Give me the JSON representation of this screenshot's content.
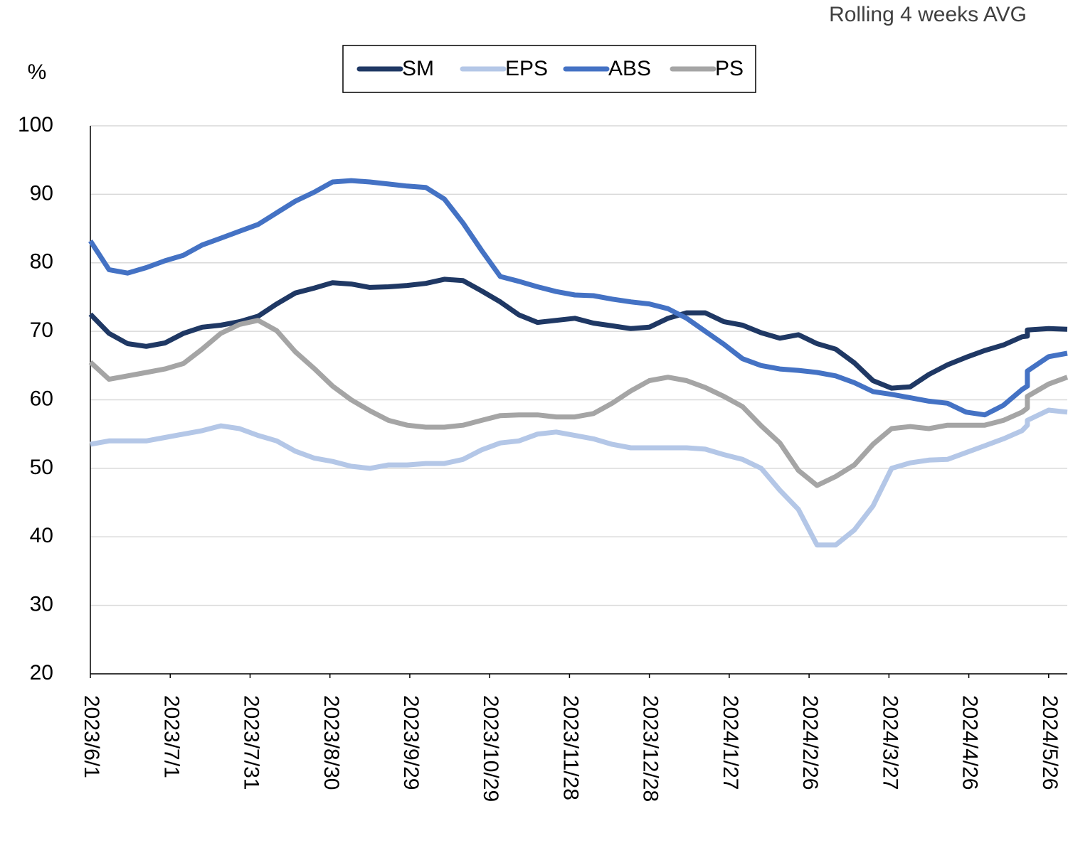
{
  "chart_data": {
    "type": "line",
    "annotation": "Rolling 4 weeks AVG",
    "ylabel": "%",
    "x": [
      "2023/6/1",
      "2023/6/8",
      "2023/6/15",
      "2023/6/22",
      "2023/6/29",
      "2023/7/6",
      "2023/7/13",
      "2023/7/20",
      "2023/7/27",
      "2023/8/3",
      "2023/8/10",
      "2023/8/17",
      "2023/8/24",
      "2023/8/31",
      "2023/9/7",
      "2023/9/14",
      "2023/9/21",
      "2023/9/28",
      "2023/10/5",
      "2023/10/12",
      "2023/10/19",
      "2023/10/26",
      "2023/11/2",
      "2023/11/9",
      "2023/11/16",
      "2023/11/23",
      "2023/11/30",
      "2023/12/7",
      "2023/12/14",
      "2023/12/21",
      "2023/12/28",
      "2024/1/4",
      "2024/1/11",
      "2024/1/18",
      "2024/1/25",
      "2024/2/1",
      "2024/2/8",
      "2024/2/15",
      "2024/2/22",
      "2024/2/29",
      "2024/3/7",
      "2024/3/14",
      "2024/3/21",
      "2024/3/28",
      "2024/4/4",
      "2024/4/11",
      "2024/4/18",
      "2024/4/25",
      "2024/5/2",
      "2024/5/9",
      "2024/5/16",
      "2024/5/18",
      "2024/5/18",
      "2024/5/26",
      "2024/6/2"
    ],
    "series": [
      {
        "name": "SM",
        "color": "#1f3864",
        "values": [
          72.5,
          69.7,
          68.2,
          67.8,
          68.3,
          69.7,
          70.6,
          70.9,
          71.4,
          72.2,
          74.0,
          75.6,
          76.3,
          77.1,
          76.9,
          76.4,
          76.5,
          76.7,
          77.0,
          77.6,
          77.4,
          75.9,
          74.3,
          72.4,
          71.3,
          71.6,
          71.9,
          71.2,
          70.8,
          70.4,
          70.6,
          71.9,
          72.7,
          72.7,
          71.4,
          70.9,
          69.8,
          69.0,
          69.5,
          68.2,
          67.4,
          65.4,
          62.8,
          61.7,
          61.9,
          63.7,
          65.1,
          66.2,
          67.2,
          68.0,
          69.2,
          69.3,
          70.2,
          70.4,
          70.3
        ]
      },
      {
        "name": "EPS",
        "color": "#b4c7e7",
        "values": [
          53.5,
          54.0,
          54.0,
          54.0,
          54.5,
          55.0,
          55.5,
          56.2,
          55.8,
          54.8,
          54.0,
          52.5,
          51.5,
          51.0,
          50.3,
          50.0,
          50.5,
          50.5,
          50.7,
          50.7,
          51.3,
          52.7,
          53.7,
          54.0,
          55.0,
          55.3,
          54.8,
          54.3,
          53.5,
          53.0,
          53.0,
          53.0,
          53.0,
          52.8,
          52.0,
          51.3,
          50.0,
          46.8,
          44.0,
          38.8,
          38.8,
          41.0,
          44.5,
          50.0,
          50.8,
          51.2,
          51.3,
          52.3,
          53.3,
          54.3,
          55.5,
          56.3,
          57.0,
          58.5,
          58.2
        ]
      },
      {
        "name": "ABS",
        "color": "#4472c4",
        "values": [
          83.2,
          79.0,
          78.5,
          79.3,
          80.3,
          81.1,
          82.6,
          83.6,
          84.6,
          85.6,
          87.3,
          89.0,
          90.3,
          91.8,
          92.0,
          91.8,
          91.5,
          91.2,
          91.0,
          89.3,
          85.8,
          81.8,
          78.0,
          77.3,
          76.5,
          75.8,
          75.3,
          75.2,
          74.7,
          74.3,
          74.0,
          73.3,
          71.9,
          70.0,
          68.1,
          66.0,
          65.0,
          64.5,
          64.3,
          64.0,
          63.5,
          62.5,
          61.2,
          60.8,
          60.3,
          59.8,
          59.5,
          58.2,
          57.8,
          59.2,
          61.5,
          62.0,
          64.2,
          66.3,
          66.8
        ]
      },
      {
        "name": "PS",
        "color": "#a5a5a5",
        "values": [
          65.5,
          63.0,
          63.5,
          64.0,
          64.5,
          65.3,
          67.4,
          69.7,
          71.0,
          71.6,
          70.1,
          67.0,
          64.6,
          62.0,
          60.0,
          58.4,
          57.0,
          56.3,
          56.0,
          56.0,
          56.3,
          57.0,
          57.7,
          57.8,
          57.8,
          57.5,
          57.5,
          58.0,
          59.5,
          61.3,
          62.8,
          63.3,
          62.8,
          61.8,
          60.5,
          59.0,
          56.2,
          53.7,
          49.7,
          47.5,
          48.8,
          50.5,
          53.5,
          55.8,
          56.1,
          55.8,
          56.3,
          56.3,
          56.3,
          57.0,
          58.2,
          58.8,
          60.5,
          62.3,
          63.3
        ]
      }
    ],
    "xlim": [
      "2023/6/1",
      "2024/6/2"
    ],
    "xticks": [
      "2023/6/1",
      "2023/7/1",
      "2023/7/31",
      "2023/8/30",
      "2023/9/29",
      "2023/10/29",
      "2023/11/28",
      "2023/12/28",
      "2024/1/27",
      "2024/2/26",
      "2024/3/27",
      "2024/4/26",
      "2024/5/26"
    ],
    "ylim": [
      20,
      100
    ],
    "yticks": [
      20,
      30,
      40,
      50,
      60,
      70,
      80,
      90,
      100
    ],
    "grid": true,
    "legend": "top"
  }
}
